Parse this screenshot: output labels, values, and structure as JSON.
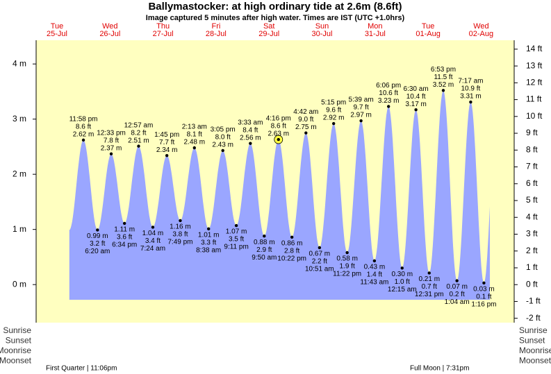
{
  "chart_data": {
    "type": "tide",
    "title": "Ballymastocker: at high  ordinary tide at 2.6m (8.6ft)",
    "subtitle": "Image captured 5 minutes after high water. Times are IST (UTC +1.0hrs)",
    "ylim": [
      -0.69,
      4.43
    ],
    "yticks": [
      {
        "value": 0,
        "label": "0 m"
      },
      {
        "value": 1,
        "label": "1 m"
      },
      {
        "value": 2,
        "label": "2 m"
      },
      {
        "value": 3,
        "label": "3 m"
      },
      {
        "value": 4,
        "label": "4 m"
      }
    ],
    "y2lim": [
      -2.26,
      14.53
    ],
    "y2ticks": [
      {
        "value": -2,
        "label": "-2 ft"
      },
      {
        "value": -1,
        "label": "-1 ft"
      },
      {
        "value": 0,
        "label": "0 ft"
      },
      {
        "value": 1,
        "label": "1 ft"
      },
      {
        "value": 2,
        "label": "2 ft"
      },
      {
        "value": 3,
        "label": "3 ft"
      },
      {
        "value": 4,
        "label": "4 ft"
      },
      {
        "value": 5,
        "label": "5 ft"
      },
      {
        "value": 6,
        "label": "6 ft"
      },
      {
        "value": 7,
        "label": "7 ft"
      },
      {
        "value": 8,
        "label": "8 ft"
      },
      {
        "value": 9,
        "label": "9 ft"
      },
      {
        "value": 10,
        "label": "10 ft"
      },
      {
        "value": 11,
        "label": "11 ft"
      },
      {
        "value": 12,
        "label": "12 ft"
      },
      {
        "value": 13,
        "label": "13 ft"
      },
      {
        "value": 14,
        "label": "14 ft"
      }
    ],
    "background_color": "#ffffc0",
    "water_color": "#9aa6ff",
    "days": [
      {
        "day": "Tue",
        "date": "25-Jul",
        "events": [
          {
            "tide": "high",
            "time": "11:58 pm",
            "ft": 8.6,
            "ft_label": "8.6 ft",
            "m": 2.62,
            "m_label": "2.62 m"
          }
        ]
      },
      {
        "day": "Wed",
        "date": "26-Jul",
        "events": [
          {
            "tide": "low",
            "time": "6:20 am",
            "ft": 3.2,
            "ft_label": "3.2 ft",
            "m": 0.99,
            "m_label": "0.99 m"
          },
          {
            "tide": "high",
            "time": "12:33 pm",
            "ft": 7.8,
            "ft_label": "7.8 ft",
            "m": 2.37,
            "m_label": "2.37 m"
          },
          {
            "tide": "low",
            "time": "6:34 pm",
            "ft": 3.6,
            "ft_label": "3.6 ft",
            "m": 1.11,
            "m_label": "1.11 m"
          }
        ]
      },
      {
        "day": "Thu",
        "date": "27-Jul",
        "events": [
          {
            "tide": "high",
            "time": "12:57 am",
            "ft": 8.2,
            "ft_label": "8.2 ft",
            "m": 2.51,
            "m_label": "2.51 m"
          },
          {
            "tide": "low",
            "time": "7:24 am",
            "ft": 3.4,
            "ft_label": "3.4 ft",
            "m": 1.04,
            "m_label": "1.04 m"
          },
          {
            "tide": "high",
            "time": "1:45 pm",
            "ft": 7.7,
            "ft_label": "7.7 ft",
            "m": 2.34,
            "m_label": "2.34 m"
          },
          {
            "tide": "low",
            "time": "7:49 pm",
            "ft": 3.8,
            "ft_label": "3.8 ft",
            "m": 1.16,
            "m_label": "1.16 m"
          }
        ]
      },
      {
        "day": "Fri",
        "date": "28-Jul",
        "events": [
          {
            "tide": "high",
            "time": "2:13 am",
            "ft": 8.1,
            "ft_label": "8.1 ft",
            "m": 2.48,
            "m_label": "2.48 m"
          },
          {
            "tide": "low",
            "time": "8:38 am",
            "ft": 3.3,
            "ft_label": "3.3 ft",
            "m": 1.01,
            "m_label": "1.01 m"
          },
          {
            "tide": "high",
            "time": "3:05 pm",
            "ft": 8.0,
            "ft_label": "8.0 ft",
            "m": 2.43,
            "m_label": "2.43 m"
          },
          {
            "tide": "low",
            "time": "9:11 pm",
            "ft": 3.5,
            "ft_label": "3.5 ft",
            "m": 1.07,
            "m_label": "1.07 m"
          }
        ]
      },
      {
        "day": "Sat",
        "date": "29-Jul",
        "events": [
          {
            "tide": "high",
            "time": "3:33 am",
            "ft": 8.4,
            "ft_label": "8.4 ft",
            "m": 2.56,
            "m_label": "2.56 m"
          },
          {
            "tide": "low",
            "time": "9:50 am",
            "ft": 2.9,
            "ft_label": "2.9 ft",
            "m": 0.88,
            "m_label": "0.88 m"
          },
          {
            "tide": "high",
            "time": "4:16 pm",
            "ft": 8.6,
            "ft_label": "8.6 ft",
            "m": 2.63,
            "m_label": "2.63 m",
            "current": true
          },
          {
            "tide": "low",
            "time": "10:22 pm",
            "ft": 2.8,
            "ft_label": "2.8 ft",
            "m": 0.86,
            "m_label": "0.86 m"
          }
        ]
      },
      {
        "day": "Sun",
        "date": "30-Jul",
        "events": [
          {
            "tide": "high",
            "time": "4:42 am",
            "ft": 9.0,
            "ft_label": "9.0 ft",
            "m": 2.75,
            "m_label": "2.75 m"
          },
          {
            "tide": "low",
            "time": "10:51 am",
            "ft": 2.2,
            "ft_label": "2.2 ft",
            "m": 0.67,
            "m_label": "0.67 m"
          },
          {
            "tide": "high",
            "time": "5:15 pm",
            "ft": 9.6,
            "ft_label": "9.6 ft",
            "m": 2.92,
            "m_label": "2.92 m"
          },
          {
            "tide": "low",
            "time": "11:22 pm",
            "ft": 1.9,
            "ft_label": "1.9 ft",
            "m": 0.58,
            "m_label": "0.58 m"
          }
        ]
      },
      {
        "day": "Mon",
        "date": "31-Jul",
        "events": [
          {
            "tide": "high",
            "time": "5:39 am",
            "ft": 9.7,
            "ft_label": "9.7 ft",
            "m": 2.97,
            "m_label": "2.97 m"
          },
          {
            "tide": "low",
            "time": "11:43 am",
            "ft": 1.4,
            "ft_label": "1.4 ft",
            "m": 0.43,
            "m_label": "0.43 m"
          },
          {
            "tide": "high",
            "time": "6:06 pm",
            "ft": 10.6,
            "ft_label": "10.6 ft",
            "m": 3.23,
            "m_label": "3.23 m"
          }
        ]
      },
      {
        "day": "Tue",
        "date": "01-Aug",
        "events": [
          {
            "tide": "low",
            "time": "12:15 am",
            "ft": 1.0,
            "ft_label": "1.0 ft",
            "m": 0.3,
            "m_label": "0.30 m"
          },
          {
            "tide": "high",
            "time": "6:30 am",
            "ft": 10.4,
            "ft_label": "10.4 ft",
            "m": 3.17,
            "m_label": "3.17 m"
          },
          {
            "tide": "low",
            "time": "12:31 pm",
            "ft": 0.7,
            "ft_label": "0.7 ft",
            "m": 0.21,
            "m_label": "0.21 m"
          },
          {
            "tide": "high",
            "time": "6:53 pm",
            "ft": 11.5,
            "ft_label": "11.5 ft",
            "m": 3.52,
            "m_label": "3.52 m"
          }
        ]
      },
      {
        "day": "Wed",
        "date": "02-Aug",
        "events": [
          {
            "tide": "low",
            "time": "1:04 am",
            "ft": 0.2,
            "ft_label": "0.2 ft",
            "m": 0.07,
            "m_label": "0.07 m"
          },
          {
            "tide": "high",
            "time": "7:17 am",
            "ft": 10.9,
            "ft_label": "10.9 ft",
            "m": 3.31,
            "m_label": "3.31 m"
          },
          {
            "tide": "low",
            "time": "1:16 pm",
            "ft": 0.1,
            "ft_label": "0.1 ft",
            "m": 0.03,
            "m_label": "0.03 m"
          }
        ]
      }
    ],
    "row_labels": [
      "Sunrise",
      "Sunset",
      "Moonrise",
      "Moonset"
    ],
    "moon_phases": [
      "First Quarter | 11:06pm",
      "Full Moon | 7:31pm"
    ]
  }
}
